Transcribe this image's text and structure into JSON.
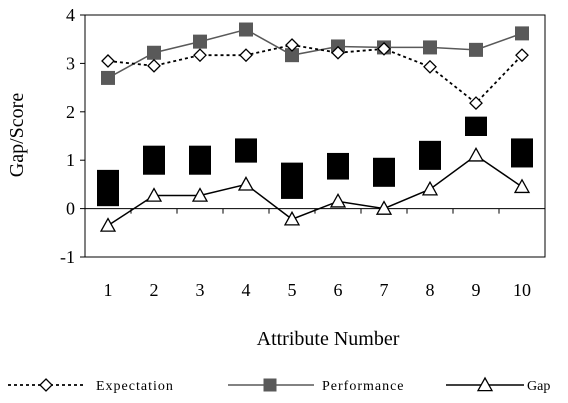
{
  "chart_data": {
    "type": "line",
    "title": "",
    "xlabel": "Attribute Number",
    "ylabel": "Gap/Score",
    "categories": [
      "1",
      "2",
      "3",
      "4",
      "5",
      "6",
      "7",
      "8",
      "9",
      "10"
    ],
    "ylim": [
      -1,
      4
    ],
    "yticks": [
      "-1",
      "0",
      "1",
      "2",
      "3",
      "4"
    ],
    "grid": false,
    "legend_position": "bottom",
    "series": [
      {
        "name": "Expectation",
        "style": "dotted line, open diamond markers",
        "color": "#000000",
        "values": [
          3.05,
          2.95,
          3.17,
          3.17,
          3.38,
          3.22,
          3.3,
          2.93,
          2.18,
          3.17
        ]
      },
      {
        "name": "Performance",
        "style": "gray line, filled square markers",
        "color": "#595959",
        "values": [
          2.7,
          3.22,
          3.45,
          3.7,
          3.17,
          3.35,
          3.33,
          3.33,
          3.28,
          3.62
        ]
      },
      {
        "name": "Gap",
        "style": "solid line, open triangle markers",
        "color": "#000000",
        "values": [
          -0.35,
          0.27,
          0.27,
          0.5,
          -0.22,
          0.15,
          0.0,
          0.4,
          1.1,
          0.45
        ]
      }
    ],
    "error_boxes": {
      "color": "#000000",
      "ranges": [
        [
          0.05,
          0.8
        ],
        [
          0.7,
          1.3
        ],
        [
          0.7,
          1.3
        ],
        [
          0.95,
          1.45
        ],
        [
          0.2,
          0.95
        ],
        [
          0.6,
          1.15
        ],
        [
          0.45,
          1.05
        ],
        [
          0.8,
          1.4
        ],
        [
          1.5,
          1.9
        ],
        [
          0.85,
          1.45
        ]
      ]
    }
  }
}
